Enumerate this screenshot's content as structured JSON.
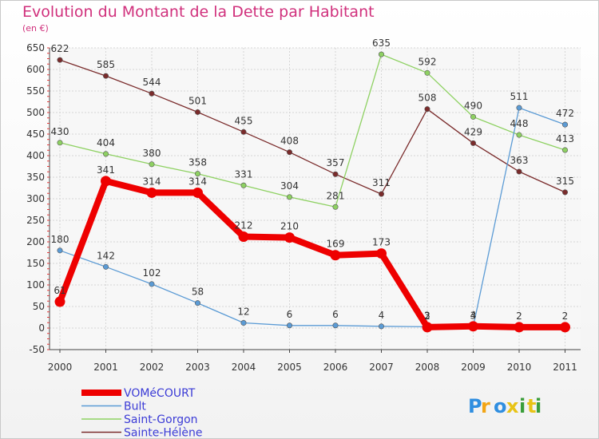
{
  "chart_data": {
    "type": "line",
    "title": "Evolution du Montant de la Dette par Habitant",
    "subtitle": "(en €)",
    "xlabel": "",
    "ylabel": "",
    "categories": [
      "2000",
      "2001",
      "2002",
      "2003",
      "2004",
      "2005",
      "2006",
      "2007",
      "2008",
      "2009",
      "2010",
      "2011"
    ],
    "ylim": [
      -50,
      650
    ],
    "yticks": [
      -50,
      0,
      50,
      100,
      150,
      200,
      250,
      300,
      350,
      400,
      450,
      500,
      550,
      600,
      650
    ],
    "grid": true,
    "legend_position": "bottom-left",
    "series": [
      {
        "name": "VOMéCOURT",
        "color": "#ee0000",
        "values": [
          61,
          341,
          314,
          314,
          212,
          210,
          169,
          173,
          2,
          4,
          2,
          2
        ],
        "labels": [
          "61",
          "341",
          "314",
          "314",
          "212",
          "210",
          "169",
          "173",
          "2",
          "4",
          "2",
          "2"
        ]
      },
      {
        "name": "Bult",
        "color": "#5b9bd5",
        "values": [
          180,
          142,
          102,
          58,
          12,
          6,
          6,
          4,
          3,
          3,
          511,
          472
        ],
        "labels": [
          "180",
          "142",
          "102",
          "58",
          "12",
          "6",
          "6",
          "4",
          "3",
          "3",
          "511",
          "472"
        ]
      },
      {
        "name": "Saint-Gorgon",
        "color": "#8ed162",
        "values": [
          430,
          404,
          380,
          358,
          331,
          304,
          281,
          635,
          592,
          490,
          448,
          413
        ],
        "labels": [
          "430",
          "404",
          "380",
          "358",
          "331",
          "304",
          "281",
          "635",
          "592",
          "490",
          "448",
          "413"
        ]
      },
      {
        "name": "Sainte-Hélène",
        "color": "#7a2b2b",
        "values": [
          622,
          585,
          544,
          501,
          455,
          408,
          357,
          311,
          508,
          429,
          363,
          315
        ],
        "labels": [
          "622",
          "585",
          "544",
          "501",
          "455",
          "408",
          "357",
          "311",
          "508",
          "429",
          "363",
          "315"
        ]
      }
    ]
  },
  "logo": {
    "text": "Proxiti"
  }
}
